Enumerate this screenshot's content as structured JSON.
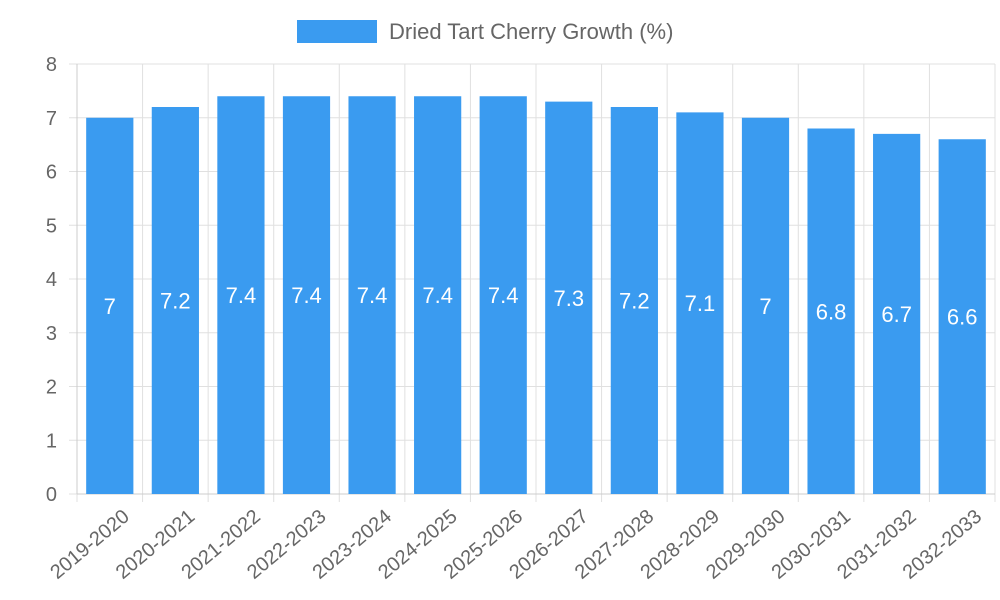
{
  "chart_data": {
    "type": "bar",
    "title": "",
    "xlabel": "",
    "ylabel": "",
    "ylim": [
      0,
      8
    ],
    "yticks": [
      0,
      1,
      2,
      3,
      4,
      5,
      6,
      7,
      8
    ],
    "grid": true,
    "legend": {
      "position": "top-center",
      "label": "Dried Tart Cherry Growth (%)"
    },
    "bar_color": "#3a9bf0",
    "categories": [
      "2019-2020",
      "2020-2021",
      "2021-2022",
      "2022-2023",
      "2023-2024",
      "2024-2025",
      "2025-2026",
      "2026-2027",
      "2027-2028",
      "2028-2029",
      "2029-2030",
      "2030-2031",
      "2031-2032",
      "2032-2033"
    ],
    "series": [
      {
        "name": "Dried Tart Cherry Growth (%)",
        "values": [
          7,
          7.2,
          7.4,
          7.4,
          7.4,
          7.4,
          7.4,
          7.3,
          7.2,
          7.1,
          7,
          6.8,
          6.7,
          6.6
        ]
      }
    ]
  }
}
